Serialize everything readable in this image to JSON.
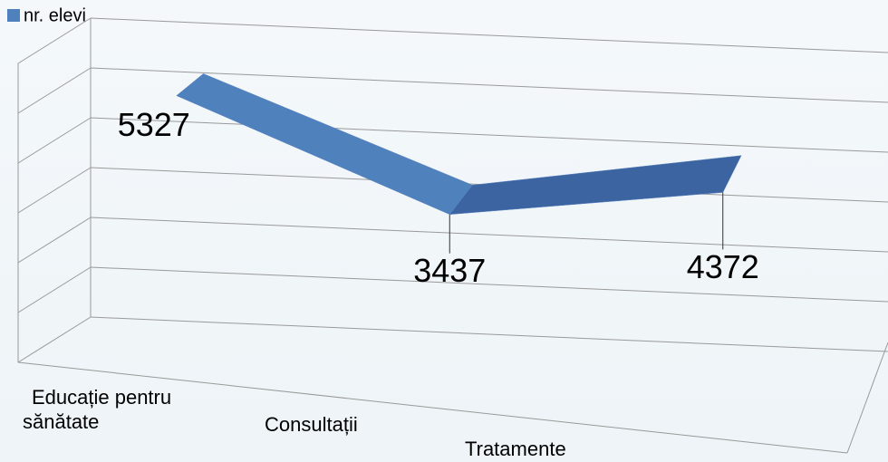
{
  "chart_data": {
    "type": "line3d",
    "categories": [
      "Educație pentru sănătate",
      "Consultații",
      "Tratamente"
    ],
    "series": [
      {
        "name": "nr. elevi",
        "color": "#4f81bd",
        "values": [
          5327,
          3437,
          4372
        ]
      }
    ],
    "ylim": [
      0,
      6000
    ],
    "yticks": [
      0,
      1000,
      2000,
      3000,
      4000,
      5000,
      6000
    ],
    "grid": true,
    "legend": "top-left"
  }
}
